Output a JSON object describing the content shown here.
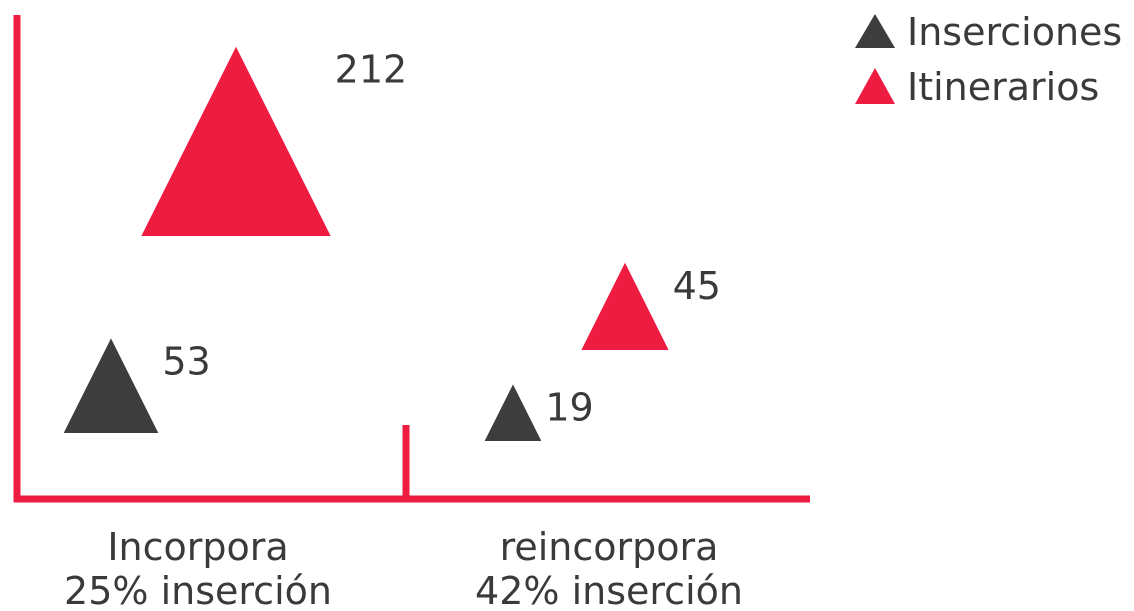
{
  "chart_data": {
    "type": "scatter",
    "categories": [
      [
        "Incorpora",
        "25% inserción"
      ],
      [
        "reincorpora",
        "42% inserción"
      ]
    ],
    "series": [
      {
        "name": "Inserciones",
        "values": [
          53,
          19
        ],
        "color": "#3d3d3d"
      },
      {
        "name": "Itinerarios",
        "values": [
          212,
          45
        ],
        "color": "#ed1c40"
      }
    ],
    "marker": "triangle",
    "marker_size_encodes_value": true,
    "axis_color": "#ed1c40",
    "grid": false,
    "legend": "top-right"
  }
}
